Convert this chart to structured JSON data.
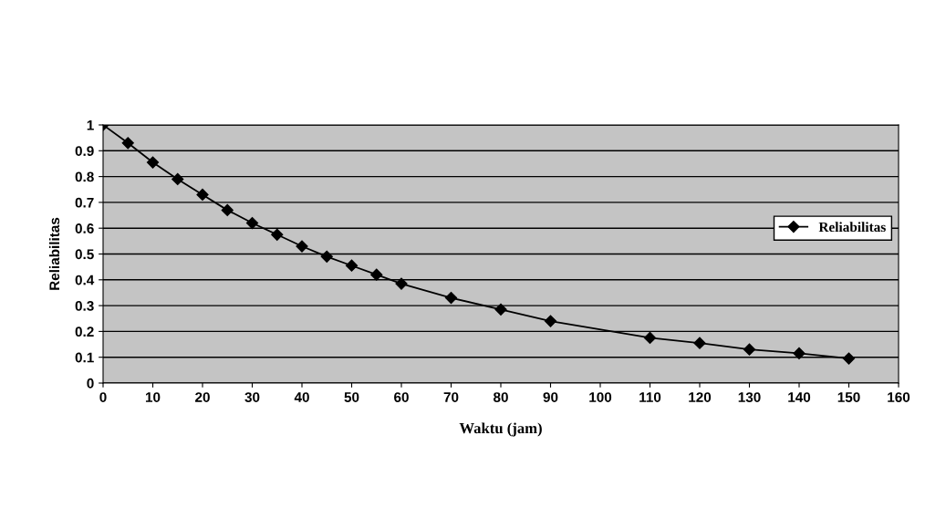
{
  "chart_data": {
    "type": "line",
    "xlabel": "Waktu (jam)",
    "ylabel": "Reliabilitas",
    "x": [
      0,
      5,
      10,
      15,
      20,
      25,
      30,
      35,
      40,
      45,
      50,
      55,
      60,
      70,
      80,
      90,
      110,
      120,
      130,
      140,
      150
    ],
    "series": [
      {
        "name": "Reliabilitas",
        "color": "#000000",
        "values": [
          1,
          0.93,
          0.855,
          0.79,
          0.73,
          0.67,
          0.62,
          0.575,
          0.53,
          0.49,
          0.455,
          0.42,
          0.385,
          0.33,
          0.285,
          0.24,
          0.175,
          0.155,
          0.13,
          0.115,
          0.095
        ]
      }
    ],
    "xlim": [
      0,
      160
    ],
    "xticks": [
      0,
      10,
      20,
      30,
      40,
      50,
      60,
      70,
      80,
      90,
      100,
      110,
      120,
      130,
      140,
      150,
      160
    ],
    "ylim": [
      0,
      1
    ],
    "yticks": [
      0,
      0.1,
      0.2,
      0.3,
      0.4,
      0.5,
      0.6,
      0.7,
      0.8,
      0.9,
      1
    ],
    "grid": "y",
    "legend": "right",
    "marker": "diamond",
    "line_style": "solid"
  }
}
